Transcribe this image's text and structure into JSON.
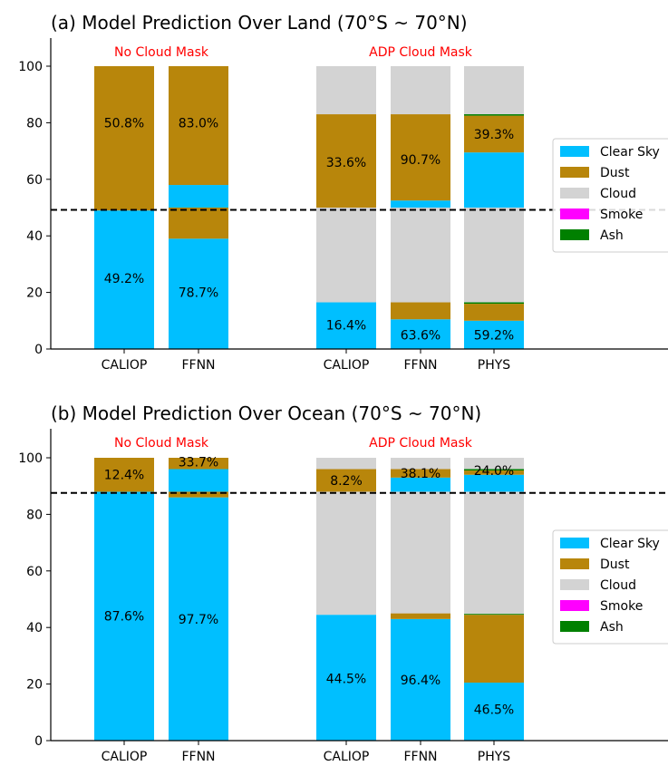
{
  "colors": {
    "clear_sky": "#00bfff",
    "dust": "#b8860b",
    "cloud": "#d3d3d3",
    "smoke": "#ff00ff",
    "ash": "#008000",
    "annotation": "#ff0000",
    "text": "#000000"
  },
  "legend_labels": [
    "Clear Sky",
    "Dust",
    "Cloud",
    "Smoke",
    "Ash"
  ],
  "chart_data": [
    {
      "type": "bar",
      "stacked": true,
      "title": "(a) Model Prediction Over Land (70°S ~ 70°N)",
      "categories": [
        "CALIOP",
        "FFNN",
        "CALIOP",
        "FFNN",
        "PHYS"
      ],
      "groups": [
        {
          "label": "No Cloud Mask",
          "categories": [
            0,
            1
          ]
        },
        {
          "label": "ADP Cloud Mask",
          "categories": [
            2,
            3,
            4
          ]
        }
      ],
      "series": [
        {
          "name": "Clear Sky",
          "color": "#00bfff",
          "segments": [
            [
              [
                0,
                49
              ]
            ],
            [
              [
                0,
                39
              ],
              [
                50,
                58
              ]
            ],
            [
              [
                0,
                16.5
              ]
            ],
            [
              [
                0,
                10.5
              ],
              [
                50,
                52.5
              ]
            ],
            [
              [
                0,
                10
              ],
              [
                50,
                69.5
              ]
            ]
          ]
        },
        {
          "name": "Dust",
          "color": "#b8860b",
          "segments": [
            [
              [
                49,
                100
              ]
            ],
            [
              [
                39,
                50
              ],
              [
                58,
                100
              ]
            ],
            [
              [
                50,
                83
              ]
            ],
            [
              [
                10.5,
                16.5
              ],
              [
                52.5,
                83
              ]
            ],
            [
              [
                10,
                16
              ],
              [
                69.5,
                82.5
              ]
            ]
          ]
        },
        {
          "name": "Cloud",
          "color": "#d3d3d3",
          "segments": [
            [],
            [],
            [
              [
                16.5,
                50
              ],
              [
                83,
                100
              ]
            ],
            [
              [
                16.5,
                50
              ],
              [
                83,
                100
              ]
            ],
            [
              [
                16.5,
                50
              ],
              [
                83,
                100
              ]
            ]
          ]
        },
        {
          "name": "Smoke",
          "color": "#ff00ff",
          "segments": [
            [],
            [],
            [],
            [],
            []
          ]
        },
        {
          "name": "Ash",
          "color": "#008000",
          "segments": [
            [],
            [],
            [],
            [],
            [
              [
                16,
                16.5
              ],
              [
                82.5,
                83
              ]
            ]
          ]
        }
      ],
      "bar_labels": [
        [
          {
            "text": "50.8%",
            "y": 80
          },
          {
            "text": "49.2%",
            "y": 25
          }
        ],
        [
          {
            "text": "83.0%",
            "y": 80
          },
          {
            "text": "78.7%",
            "y": 20
          }
        ],
        [
          {
            "text": "33.6%",
            "y": 66
          },
          {
            "text": "16.4%",
            "y": 8.5
          }
        ],
        [
          {
            "text": "90.7%",
            "y": 67
          },
          {
            "text": "63.6%",
            "y": 5
          }
        ],
        [
          {
            "text": "39.3%",
            "y": 76
          },
          {
            "text": "59.2%",
            "y": 5
          }
        ]
      ],
      "threshold": 49.2,
      "yticks": [
        0,
        20,
        40,
        60,
        80,
        100
      ],
      "ylim": [
        0,
        100
      ],
      "xlabel": "",
      "ylabel": "",
      "legend_position": "right"
    },
    {
      "type": "bar",
      "stacked": true,
      "title": "(b) Model Prediction Over Ocean (70°S ~ 70°N)",
      "categories": [
        "CALIOP",
        "FFNN",
        "CALIOP",
        "FFNN",
        "PHYS"
      ],
      "groups": [
        {
          "label": "No Cloud Mask",
          "categories": [
            0,
            1
          ]
        },
        {
          "label": "ADP Cloud Mask",
          "categories": [
            2,
            3,
            4
          ]
        }
      ],
      "series": [
        {
          "name": "Clear Sky",
          "color": "#00bfff",
          "segments": [
            [
              [
                0,
                88
              ]
            ],
            [
              [
                0,
                86
              ],
              [
                88,
                96
              ]
            ],
            [
              [
                0,
                44.5
              ]
            ],
            [
              [
                0,
                43
              ],
              [
                88,
                93
              ]
            ],
            [
              [
                0,
                20.5
              ],
              [
                88,
                94
              ]
            ]
          ]
        },
        {
          "name": "Dust",
          "color": "#b8860b",
          "segments": [
            [
              [
                88,
                100
              ]
            ],
            [
              [
                86,
                88
              ],
              [
                96,
                100
              ]
            ],
            [
              [
                88,
                96
              ]
            ],
            [
              [
                43,
                45
              ],
              [
                93,
                96
              ]
            ],
            [
              [
                20.5,
                44.5
              ],
              [
                94,
                95.5
              ]
            ]
          ]
        },
        {
          "name": "Cloud",
          "color": "#d3d3d3",
          "segments": [
            [],
            [],
            [
              [
                44.5,
                88
              ],
              [
                96,
                100
              ]
            ],
            [
              [
                45,
                88
              ],
              [
                96,
                100
              ]
            ],
            [
              [
                44.8,
                88
              ],
              [
                96,
                100
              ]
            ]
          ]
        },
        {
          "name": "Smoke",
          "color": "#ff00ff",
          "segments": [
            [],
            [],
            [],
            [],
            []
          ]
        },
        {
          "name": "Ash",
          "color": "#008000",
          "segments": [
            [],
            [],
            [],
            [],
            [
              [
                44.5,
                44.8
              ],
              [
                95.5,
                96
              ]
            ]
          ]
        }
      ],
      "bar_labels": [
        [
          {
            "text": "12.4%",
            "y": 94
          },
          {
            "text": "87.6%",
            "y": 44
          }
        ],
        [
          {
            "text": "33.7%",
            "y": 98.5
          },
          {
            "text": "97.7%",
            "y": 43
          }
        ],
        [
          {
            "text": "8.2%",
            "y": 92
          },
          {
            "text": "44.5%",
            "y": 22
          }
        ],
        [
          {
            "text": "38.1%",
            "y": 94.5
          },
          {
            "text": "96.4%",
            "y": 21.5
          }
        ],
        [
          {
            "text": "24.0%",
            "y": 95.5
          },
          {
            "text": "46.5%",
            "y": 11
          }
        ]
      ],
      "threshold": 87.6,
      "yticks": [
        0,
        20,
        40,
        60,
        80,
        100
      ],
      "ylim": [
        0,
        100
      ],
      "xlabel": "",
      "ylabel": "",
      "legend_position": "right"
    }
  ]
}
